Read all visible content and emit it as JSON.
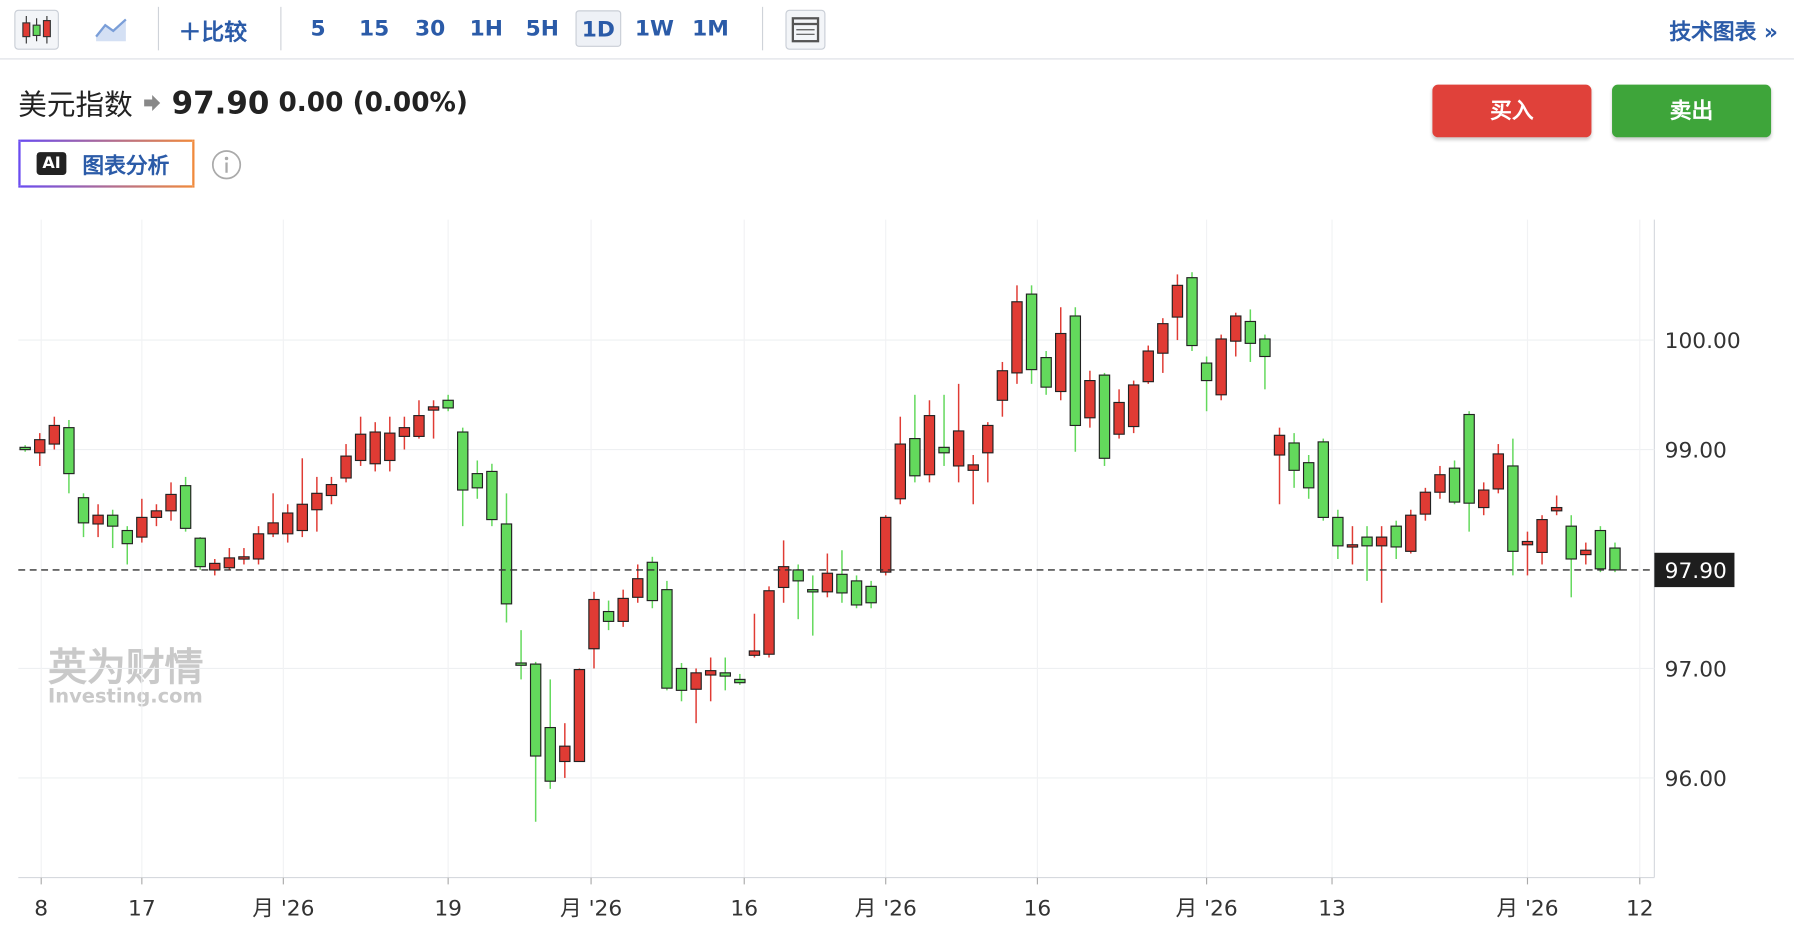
{
  "toolbar": {
    "compare": "比较",
    "intervals": [
      "5",
      "15",
      "30",
      "1H",
      "5H",
      "1D",
      "1W",
      "1M"
    ],
    "selected": "1D",
    "technical": "技术图表 »"
  },
  "header": {
    "name": "美元指数",
    "price": "97.90",
    "change": "0.00",
    "change_pct": "(0.00%)",
    "buy": "买入",
    "sell": "卖出",
    "ai_badge": "AI",
    "ai_label": "图表分析"
  },
  "watermark": {
    "cn": "英为财情",
    "en": "Investing.com"
  },
  "chart_data": {
    "type": "candlestick",
    "up_color": "#e03b34",
    "down_color": "#63d95c",
    "grid": true,
    "open": [
      99.02,
      98.97,
      99.05,
      99.2,
      98.56,
      98.32,
      98.4,
      98.26,
      98.2,
      98.38,
      98.44,
      98.67,
      98.19,
      97.9,
      97.92,
      98.0,
      98.0,
      98.23,
      98.23,
      98.26,
      98.45,
      98.58,
      98.74,
      98.9,
      98.87,
      98.9,
      99.12,
      99.12,
      99.36,
      99.45,
      99.16,
      98.78,
      98.8,
      98.32,
      97.05,
      97.04,
      96.46,
      96.15,
      96.15,
      97.18,
      97.52,
      97.43,
      97.65,
      97.97,
      97.72,
      97.0,
      96.81,
      96.94,
      96.96,
      96.9,
      97.12,
      97.13,
      97.74,
      97.9,
      97.72,
      97.7,
      97.86,
      97.8,
      97.75,
      97.88,
      98.55,
      99.1,
      98.77,
      99.02,
      98.85,
      98.81,
      98.97,
      99.45,
      99.7,
      100.42,
      99.84,
      99.53,
      100.22,
      99.29,
      99.68,
      99.14,
      99.21,
      99.62,
      99.88,
      100.21,
      100.57,
      99.79,
      99.5,
      99.99,
      100.17,
      100.01,
      98.95,
      99.06,
      98.88,
      99.07,
      98.38,
      98.11,
      98.2,
      98.12,
      98.3,
      98.07,
      98.41,
      98.61,
      98.83,
      99.32,
      98.47,
      98.64,
      98.85,
      98.13,
      98.06,
      98.44,
      98.3,
      98.04,
      98.26,
      98.1
    ],
    "high": [
      99.04,
      99.15,
      99.3,
      99.27,
      98.6,
      98.5,
      98.45,
      98.3,
      98.55,
      98.5,
      98.7,
      98.75,
      98.2,
      98.0,
      98.1,
      98.1,
      98.3,
      98.6,
      98.5,
      98.92,
      98.75,
      98.75,
      99.05,
      99.3,
      99.25,
      99.3,
      99.3,
      99.45,
      99.45,
      99.5,
      99.2,
      98.9,
      98.87,
      98.6,
      97.35,
      97.06,
      96.9,
      96.5,
      97.0,
      97.7,
      97.62,
      97.72,
      97.95,
      98.02,
      97.8,
      97.05,
      97.0,
      97.1,
      97.1,
      96.95,
      97.5,
      97.75,
      98.17,
      97.95,
      97.85,
      98.05,
      98.08,
      97.85,
      97.8,
      98.4,
      99.3,
      99.5,
      99.45,
      99.5,
      99.6,
      98.95,
      99.25,
      99.8,
      100.5,
      100.5,
      99.9,
      100.3,
      100.3,
      99.72,
      99.7,
      99.55,
      99.63,
      99.95,
      100.2,
      100.6,
      100.62,
      99.85,
      100.05,
      100.25,
      100.28,
      100.05,
      99.2,
      99.15,
      98.95,
      99.1,
      98.45,
      98.3,
      98.3,
      98.3,
      98.35,
      98.45,
      98.65,
      98.85,
      98.9,
      99.35,
      98.7,
      99.05,
      99.1,
      98.25,
      98.4,
      98.58,
      98.4,
      98.15,
      98.3,
      98.15
    ],
    "low": [
      98.98,
      98.85,
      99.0,
      98.6,
      98.2,
      98.2,
      98.1,
      97.95,
      98.15,
      98.3,
      98.35,
      98.25,
      97.9,
      97.85,
      97.9,
      97.95,
      97.95,
      98.2,
      98.15,
      98.2,
      98.25,
      98.5,
      98.7,
      98.85,
      98.8,
      98.8,
      99.0,
      99.1,
      99.1,
      99.35,
      98.3,
      98.55,
      98.3,
      97.42,
      96.9,
      95.6,
      95.9,
      96.0,
      96.15,
      97.0,
      97.35,
      97.38,
      97.6,
      97.55,
      96.8,
      96.7,
      96.5,
      96.7,
      96.8,
      96.85,
      97.1,
      97.1,
      97.6,
      97.45,
      97.3,
      97.65,
      97.6,
      97.55,
      97.55,
      97.85,
      98.5,
      98.7,
      98.7,
      98.85,
      98.7,
      98.5,
      98.7,
      99.3,
      99.6,
      99.6,
      99.5,
      99.45,
      98.98,
      99.2,
      98.85,
      99.1,
      99.15,
      99.6,
      99.7,
      100.0,
      99.9,
      99.35,
      99.45,
      99.85,
      99.8,
      99.55,
      98.5,
      98.65,
      98.55,
      98.35,
      98.0,
      97.95,
      97.8,
      97.6,
      98.0,
      98.05,
      98.35,
      98.55,
      98.5,
      98.25,
      98.4,
      98.6,
      97.85,
      97.85,
      97.95,
      98.4,
      97.65,
      97.95,
      97.88,
      97.88
    ],
    "close": [
      99.0,
      99.09,
      99.22,
      98.78,
      98.33,
      98.4,
      98.3,
      98.14,
      98.38,
      98.44,
      98.59,
      98.28,
      97.93,
      97.96,
      98.01,
      98.02,
      98.23,
      98.33,
      98.42,
      98.5,
      98.6,
      98.68,
      98.94,
      99.14,
      99.16,
      99.15,
      99.2,
      99.31,
      99.39,
      99.38,
      98.63,
      98.65,
      98.36,
      97.59,
      97.03,
      96.2,
      95.97,
      96.29,
      96.99,
      97.63,
      97.43,
      97.64,
      97.82,
      97.62,
      96.82,
      96.8,
      96.96,
      96.98,
      96.93,
      96.87,
      97.16,
      97.71,
      97.93,
      97.8,
      97.7,
      97.87,
      97.69,
      97.58,
      97.6,
      98.38,
      99.05,
      98.76,
      99.31,
      98.97,
      99.17,
      98.86,
      99.22,
      99.72,
      100.35,
      99.73,
      99.57,
      100.06,
      99.22,
      99.63,
      98.92,
      99.43,
      99.59,
      99.9,
      100.15,
      100.5,
      99.95,
      99.63,
      100.01,
      100.22,
      99.97,
      99.85,
      99.13,
      98.81,
      98.65,
      98.38,
      98.12,
      98.13,
      98.12,
      98.2,
      98.11,
      98.4,
      98.61,
      98.77,
      98.52,
      98.51,
      98.63,
      98.96,
      98.07,
      98.16,
      98.36,
      98.47,
      98.0,
      98.08,
      97.91,
      97.9
    ],
    "ylim": [
      95.09,
      101.1
    ],
    "yticks": [
      {
        "value": 96,
        "label": "96.00"
      },
      {
        "value": 97,
        "label": "97.00"
      },
      {
        "value": 99,
        "label": "99.00"
      },
      {
        "value": 100,
        "label": "100.00"
      }
    ],
    "xlim": [
      -0.47,
      111.7
    ],
    "xticks": [
      {
        "value": 1.1,
        "label": "8"
      },
      {
        "value": 8,
        "label": "17"
      },
      {
        "value": 17.7,
        "label": "月 '26"
      },
      {
        "value": 29,
        "label": "19"
      },
      {
        "value": 38.8,
        "label": "月 '26"
      },
      {
        "value": 49.3,
        "label": "16"
      },
      {
        "value": 59,
        "label": "月 '26"
      },
      {
        "value": 69.4,
        "label": "16"
      },
      {
        "value": 81,
        "label": "月 '26"
      },
      {
        "value": 89.6,
        "label": "13"
      },
      {
        "value": 103,
        "label": "月 '26"
      },
      {
        "value": 110.7,
        "label": "12"
      }
    ],
    "last_price": {
      "value": 97.9,
      "label": "97.90"
    }
  }
}
